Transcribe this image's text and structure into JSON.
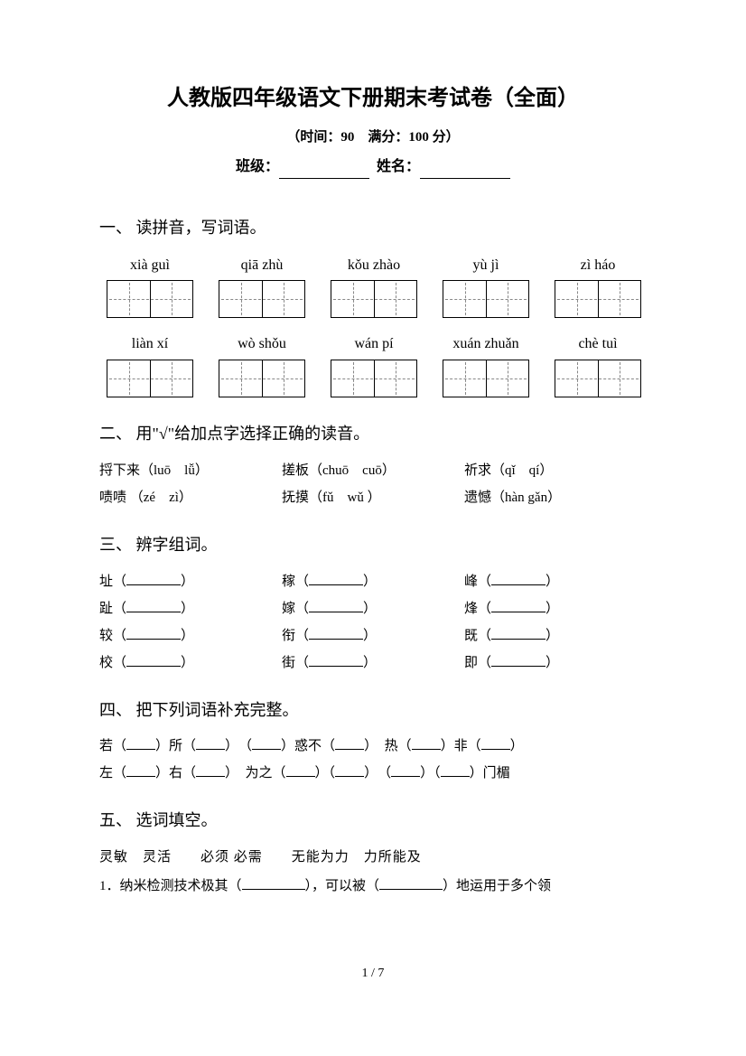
{
  "header": {
    "title": "人教版四年级语文下册期末考试卷（全面）",
    "subtitle": "（时间：90　满分：100 分）",
    "class_label": "班级：",
    "name_label": "姓名："
  },
  "sections": {
    "q1": {
      "title": "一、 读拼音，写词语。",
      "row1": [
        "xià guì",
        "qiā zhù",
        "kǒu zhào",
        "yù jì",
        "zì háo"
      ],
      "row2": [
        "liàn xí",
        "wò shǒu",
        "wán pí",
        "xuán zhuǎn",
        "chè tuì"
      ]
    },
    "q2": {
      "title": "二、 用\"√\"给加点字选择正确的读音。",
      "items": [
        {
          "text": "捋下来（luō　lǚ）"
        },
        {
          "text": "搓板（chuō　cuō）"
        },
        {
          "text": "祈求（qǐ　qí）"
        },
        {
          "text": "啧啧 （zé　zì）"
        },
        {
          "text": "抚摸（fǔ　wǔ ）"
        },
        {
          "text": "遗憾（hàn gǎn）"
        }
      ]
    },
    "q3": {
      "title": "三、 辨字组词。",
      "rows": [
        [
          "址",
          "稼",
          "峰"
        ],
        [
          "趾",
          "嫁",
          "烽"
        ],
        [
          "较",
          "衔",
          "既"
        ],
        [
          "校",
          "街",
          "即"
        ]
      ]
    },
    "q4": {
      "title": "四、 把下列词语补充完整。",
      "line1_parts": [
        "若（",
        "）所（",
        "）　（",
        "）惑不（",
        "）　热（",
        "）非（",
        "）"
      ],
      "line2_parts": [
        "左（",
        "）右（",
        "）　为之（",
        "）（",
        "）　（",
        "）（",
        "）门楣"
      ]
    },
    "q5": {
      "title": "五、 选词填空。",
      "words": "灵敏　灵活　　必须 必需　　无能为力　力所能及",
      "sentence_pre": "1．纳米检测技术极其（",
      "sentence_mid": "），可以被（",
      "sentence_post": "）地运用于多个领"
    }
  },
  "footer": {
    "page": "1 / 7"
  }
}
